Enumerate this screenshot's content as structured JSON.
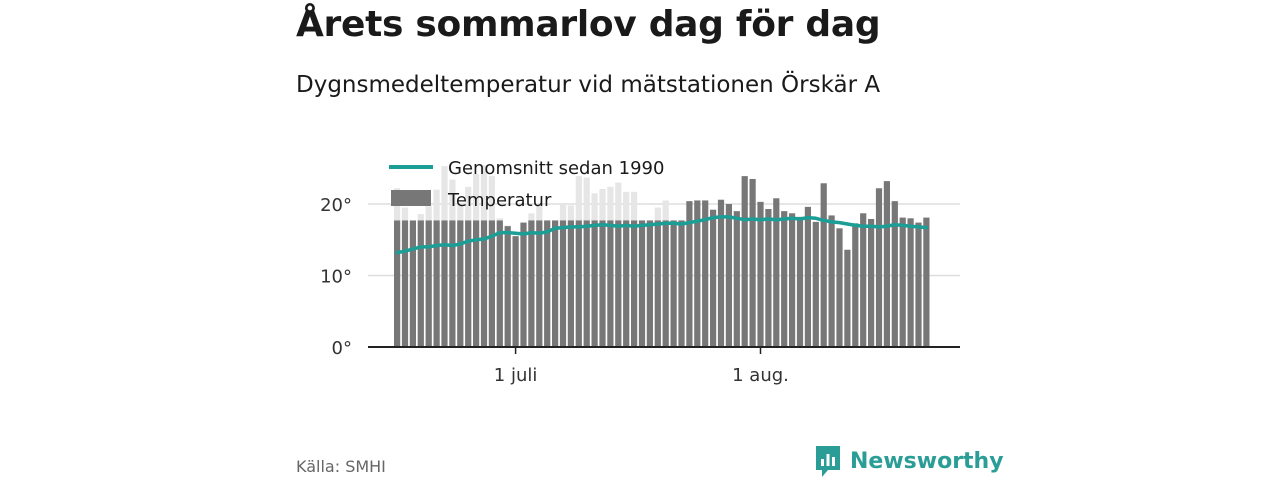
{
  "title": "Årets sommarlov dag för dag",
  "subtitle": "Dygnsmedeltemperatur vid mätstationen Örskär A",
  "source": "Källa: SMHI",
  "brand": {
    "name": "Newsworthy",
    "color": "#2a9d96"
  },
  "colors": {
    "bar": "#777777",
    "bar_background": "#e6e6e6",
    "line": "#1a9e96",
    "grid": "#dddddd",
    "axis": "#222222"
  },
  "chart_data": {
    "type": "bar",
    "x_start": "2018-06-16",
    "x_ticks": [
      {
        "date": "2018-07-01",
        "label": "1 juli"
      },
      {
        "date": "2018-08-01",
        "label": "1 aug."
      }
    ],
    "y_ticks": [
      {
        "value": 0,
        "label": "0°"
      },
      {
        "value": 10,
        "label": "10°"
      },
      {
        "value": 20,
        "label": "20°"
      }
    ],
    "ylim": [
      0,
      25
    ],
    "legend_position": "top-left",
    "grid": true,
    "series": [
      {
        "name": "Temperatur",
        "kind": "bar",
        "values": [
          17.7,
          17.7,
          17.7,
          17.7,
          17.7,
          17.7,
          17.7,
          17.7,
          17.7,
          17.7,
          17.7,
          17.7,
          17.7,
          17.7,
          16.9,
          15.5,
          17.4,
          17.7,
          17.7,
          17.7,
          17.7,
          17.7,
          17.7,
          17.7,
          17.7,
          17.7,
          17.7,
          17.7,
          17.7,
          17.7,
          17.7,
          17.7,
          17.7,
          17.7,
          17.7,
          17.7,
          17.7,
          20.4,
          20.5,
          20.5,
          19.2,
          20.6,
          20.0,
          19.0,
          23.9,
          23.5,
          20.3,
          19.3,
          20.8,
          19.0,
          18.7,
          18.2,
          19.6,
          17.5,
          22.9,
          18.4,
          16.6,
          13.6,
          17.3,
          18.7,
          17.9,
          22.2,
          23.2,
          20.4,
          18.1,
          18.0,
          17.4,
          18.1
        ]
      },
      {
        "name": "Genomsnitt sedan 1990",
        "kind": "line",
        "values": [
          13.2,
          13.4,
          13.7,
          14.0,
          14.0,
          14.2,
          14.3,
          14.2,
          14.4,
          14.8,
          15.0,
          15.1,
          15.5,
          16.0,
          16.0,
          15.9,
          15.8,
          16.0,
          15.9,
          16.1,
          16.6,
          16.7,
          16.8,
          16.8,
          16.9,
          17.0,
          17.1,
          17.0,
          16.9,
          17.0,
          16.9,
          17.0,
          17.1,
          17.2,
          17.3,
          17.3,
          17.2,
          17.4,
          17.6,
          17.8,
          18.1,
          18.2,
          18.2,
          18.0,
          17.8,
          17.9,
          17.8,
          17.9,
          17.8,
          17.9,
          18.0,
          17.9,
          18.1,
          18.0,
          17.7,
          17.5,
          17.4,
          17.2,
          17.0,
          16.9,
          16.9,
          16.8,
          16.9,
          17.1,
          17.0,
          16.9,
          16.8,
          16.7
        ]
      }
    ],
    "background_bars": [
      22.2,
      19.5,
      16.7,
      18.6,
      19.7,
      22.0,
      25.3,
      23.4,
      20.0,
      22.4,
      24.2,
      25.4,
      23.9,
      18.0,
      17.0,
      15.5,
      17.4,
      18.7,
      20.0,
      17.7,
      17.7,
      20.0,
      19.8,
      23.9,
      23.7,
      21.5,
      22.1,
      22.4,
      23.0,
      21.7,
      21.7,
      17.7,
      17.7,
      19.5,
      20.5,
      17.7,
      17.7
    ]
  }
}
